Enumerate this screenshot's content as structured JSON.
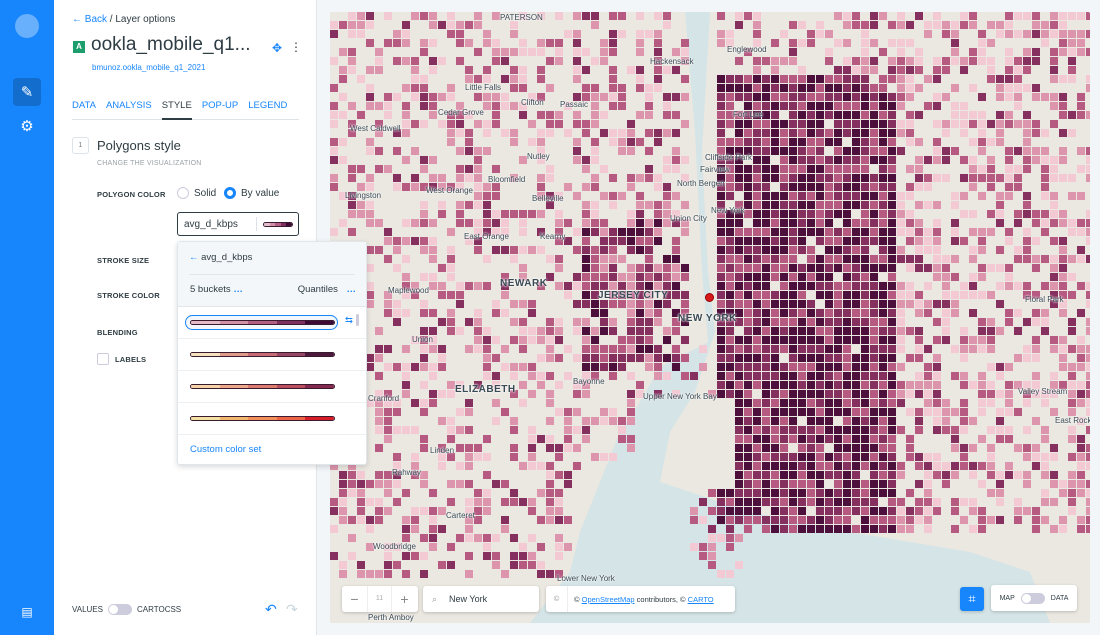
{
  "rail": {
    "items": [
      "pencil-icon",
      "sliders-icon"
    ],
    "bottom": "chat-icon"
  },
  "panel": {
    "back": "Back",
    "crumb": "/ Layer options",
    "badge": "A",
    "layer_title": "ookla_mobile_q1...",
    "source": "bmunoz.ookla_mobile_q1_2021",
    "tabs": [
      "DATA",
      "ANALYSIS",
      "STYLE",
      "POP-UP",
      "LEGEND"
    ],
    "active_tab": "STYLE",
    "step": "1",
    "section_title": "Polygons style",
    "section_sub": "CHANGE THE VISUALIZATION",
    "polygon_color": "POLYGON COLOR",
    "solid": "Solid",
    "by_value": "By value",
    "selected_mode": "By value",
    "field": "avg_d_kbps",
    "stroke_size": "STROKE SIZE",
    "stroke_color": "STROKE COLOR",
    "blending": "BLENDING",
    "labels": "LABELS",
    "values": "VALUES",
    "cartocss": "CARTOCSS"
  },
  "dropdown": {
    "field": "avg_d_kbps",
    "buckets": "5 buckets",
    "method": "Quantiles",
    "custom": "Custom color set",
    "ramps": [
      [
        "#e4bcc8",
        "#d290a7",
        "#b35f83",
        "#7f2f5f",
        "#3d0a35"
      ],
      [
        "#f6e1bd",
        "#e09a8a",
        "#c66a76",
        "#974663",
        "#4b1a3d"
      ],
      [
        "#f5d3a6",
        "#eca888",
        "#dc7b6f",
        "#b84e5e",
        "#86294e"
      ],
      [
        "#f2e1a0",
        "#f0b76f",
        "#f0915a",
        "#eb6445",
        "#d71e28"
      ]
    ]
  },
  "map": {
    "palette": [
      "#f3c9d4",
      "#dd94ad",
      "#b65a82",
      "#86305f",
      "#4d0f3c"
    ],
    "labels": [
      [
        "PATERSON",
        500,
        18,
        0
      ],
      [
        "Englewood",
        727,
        50,
        0
      ],
      [
        "Hackensack",
        650,
        62,
        0
      ],
      [
        "Little Falls",
        465,
        88,
        0
      ],
      [
        "Clifton",
        521,
        103,
        0
      ],
      [
        "Passaic",
        560,
        105,
        0
      ],
      [
        "Cedar Grove",
        438,
        113,
        0
      ],
      [
        "Fort Lee",
        733,
        115,
        0
      ],
      [
        "West Caldwell",
        350,
        129,
        0
      ],
      [
        "Nutley",
        527,
        157,
        0
      ],
      [
        "Cliffside Park",
        705,
        158,
        0
      ],
      [
        "Bloomfield",
        488,
        180,
        0
      ],
      [
        "Fairview",
        700,
        170,
        0
      ],
      [
        "North Bergen",
        677,
        184,
        0
      ],
      [
        "Belleville",
        532,
        199,
        0
      ],
      [
        "West Orange",
        426,
        191,
        0
      ],
      [
        "Livingston",
        345,
        196,
        0
      ],
      [
        "Union City",
        670,
        219,
        0
      ],
      [
        "New York",
        711,
        211,
        0
      ],
      [
        "Kearny",
        540,
        237,
        0
      ],
      [
        "East Orange",
        464,
        237,
        0
      ],
      [
        "NEWARK",
        500,
        283,
        1
      ],
      [
        "Maplewood",
        388,
        291,
        0
      ],
      [
        "JERSEY CITY",
        598,
        295,
        1
      ],
      [
        "NEW YORK",
        678,
        318,
        1
      ],
      [
        "Floral Park",
        1025,
        300,
        0
      ],
      [
        "Union",
        412,
        340,
        0
      ],
      [
        "ELIZABETH",
        455,
        389,
        1
      ],
      [
        "Bayonne",
        573,
        382,
        0
      ],
      [
        "Upper New York Bay",
        643,
        397,
        0
      ],
      [
        "Cranford",
        368,
        399,
        0
      ],
      [
        "Valley Stream",
        1018,
        392,
        0
      ],
      [
        "East Rockaway",
        1055,
        421,
        0
      ],
      [
        "Linden",
        430,
        451,
        0
      ],
      [
        "Rahway",
        392,
        473,
        0
      ],
      [
        "Carteret",
        446,
        516,
        0
      ],
      [
        "Woodbridge",
        373,
        547,
        0
      ],
      [
        "Perth Amboy",
        368,
        622,
        0
      ],
      [
        "Lower New York",
        557,
        617,
        0
      ]
    ],
    "zoom": "11",
    "search": "New York",
    "attribution_prefix": "©",
    "osm": "OpenStreetMap",
    "attr_mid": "contributors, ©",
    "carto": "CARTO",
    "map_label": "MAP",
    "data_label": "DATA"
  }
}
